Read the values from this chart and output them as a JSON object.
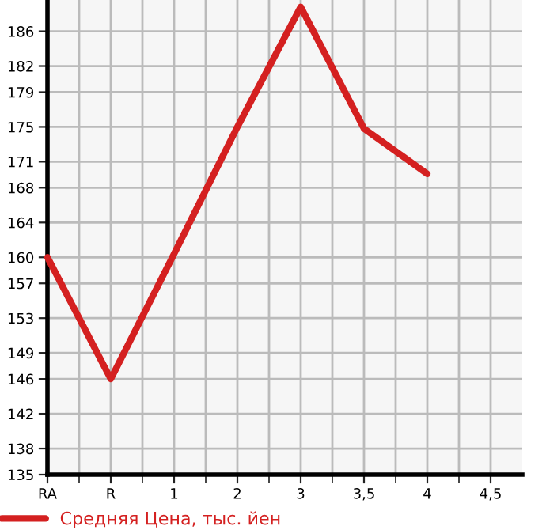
{
  "chart_data": {
    "type": "line",
    "categories": [
      "RA",
      "R",
      "1",
      "2",
      "3",
      "3,5",
      "4",
      "4,5"
    ],
    "series": [
      {
        "name": "Средняя Цена, тыс. йен",
        "color": "#d42020",
        "values": [
          160,
          146,
          160.4,
          175,
          188.8,
          174.8,
          169.6,
          null
        ]
      }
    ],
    "ylim": [
      135,
      189.6
    ],
    "yticks": [
      135,
      138,
      142,
      146,
      149,
      153,
      157,
      160,
      164,
      168,
      171,
      175,
      179,
      182,
      186
    ],
    "grid": true,
    "legend": "bottom",
    "marker": "none",
    "line_style": "solid"
  }
}
